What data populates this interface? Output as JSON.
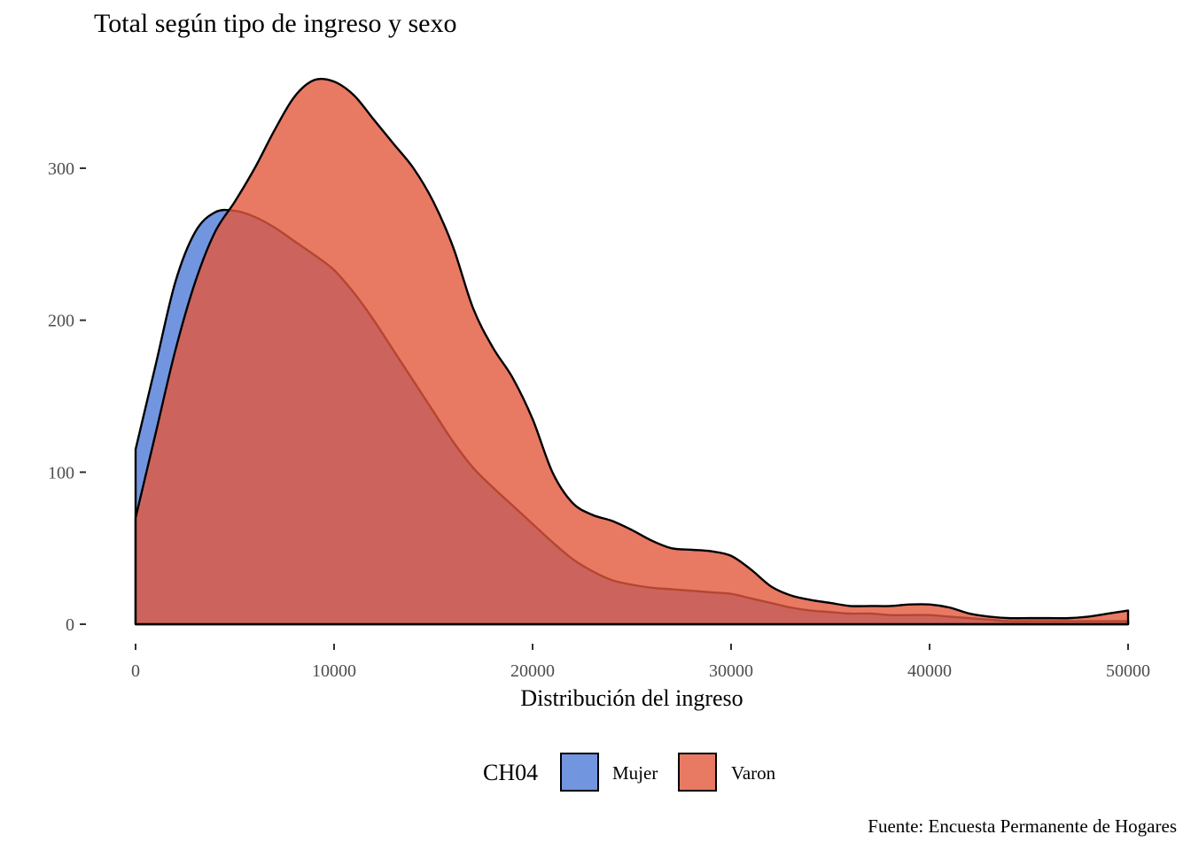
{
  "chart_data": {
    "type": "area",
    "title": "Total según tipo de ingreso y sexo",
    "xlabel": "Distribución del ingreso",
    "ylabel": "",
    "caption": "Fuente: Encuesta Permanente de Hogares",
    "xlim": [
      0,
      50000
    ],
    "ylim": [
      0,
      360
    ],
    "x_ticks": [
      0,
      10000,
      20000,
      30000,
      40000,
      50000
    ],
    "y_ticks": [
      0,
      100,
      200,
      300
    ],
    "grid": false,
    "legend": {
      "title": "CH04",
      "placement": "bottom",
      "entries": [
        "Mujer",
        "Varon"
      ]
    },
    "series": [
      {
        "name": "Mujer",
        "color": "#4f7bd8",
        "alpha": 0.8,
        "x": [
          0,
          1000,
          2000,
          3000,
          4000,
          5000,
          6000,
          7000,
          8000,
          9000,
          10000,
          11000,
          12000,
          13000,
          14000,
          15000,
          16000,
          17000,
          18000,
          19000,
          20000,
          21000,
          22000,
          23000,
          24000,
          25000,
          26000,
          27000,
          28000,
          29000,
          30000,
          31000,
          32000,
          33000,
          34000,
          35000,
          36000,
          37000,
          38000,
          39000,
          40000,
          41000,
          42000,
          43000,
          44000,
          45000,
          46000,
          47000,
          48000,
          49000,
          50000
        ],
        "y": [
          115,
          170,
          225,
          258,
          271,
          272,
          268,
          261,
          252,
          243,
          233,
          218,
          200,
          180,
          160,
          140,
          120,
          103,
          90,
          78,
          66,
          54,
          43,
          35,
          29,
          26,
          24,
          23,
          22,
          21,
          20,
          17,
          14,
          11,
          9,
          8,
          7,
          7,
          6,
          6,
          6,
          5,
          4,
          3,
          2,
          2,
          2,
          2,
          2,
          2,
          2
        ]
      },
      {
        "name": "Varon",
        "color": "#e2583c",
        "alpha": 0.8,
        "x": [
          0,
          1000,
          2000,
          3000,
          4000,
          5000,
          6000,
          7000,
          8000,
          9000,
          10000,
          11000,
          12000,
          13000,
          14000,
          15000,
          16000,
          17000,
          18000,
          19000,
          20000,
          21000,
          22000,
          23000,
          24000,
          25000,
          26000,
          27000,
          28000,
          29000,
          30000,
          31000,
          32000,
          33000,
          34000,
          35000,
          36000,
          37000,
          38000,
          39000,
          40000,
          41000,
          42000,
          43000,
          44000,
          45000,
          46000,
          47000,
          48000,
          49000,
          50000
        ],
        "y": [
          70,
          125,
          180,
          225,
          258,
          278,
          300,
          325,
          347,
          358,
          357,
          348,
          332,
          316,
          300,
          278,
          248,
          208,
          182,
          162,
          135,
          100,
          80,
          72,
          68,
          62,
          55,
          50,
          49,
          48,
          45,
          36,
          25,
          19,
          16,
          14,
          12,
          12,
          12,
          13,
          13,
          11,
          7,
          5,
          4,
          4,
          4,
          4,
          5,
          7,
          9
        ]
      }
    ]
  }
}
